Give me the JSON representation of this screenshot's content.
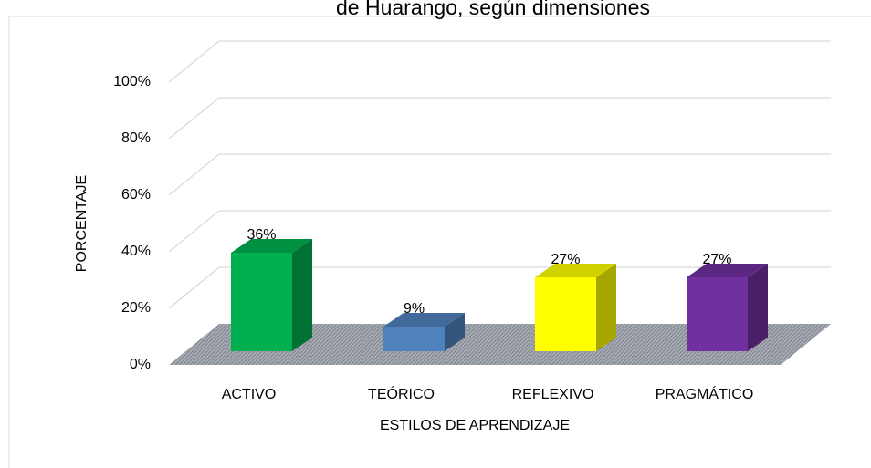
{
  "chart_data": {
    "type": "bar3d",
    "title": "de Huarango, según dimensiones",
    "x_label": "ESTILOS DE APRENDIZAJE",
    "y_label": "PORCENTAJE",
    "categories": [
      "ACTIVO",
      "TEÓRICO",
      "REFLEXIVO",
      "PRAGMÁTICO"
    ],
    "values": [
      36,
      9,
      27,
      27
    ],
    "value_labels": [
      "36%",
      "9%",
      "27%",
      "27%"
    ],
    "colors": [
      "#00b050",
      "#4f81bd",
      "#ffff00",
      "#7030a0"
    ],
    "ylim": [
      0,
      100
    ],
    "yticks": [
      {
        "value": 0,
        "label": "0%"
      },
      {
        "value": 20,
        "label": "20%"
      },
      {
        "value": 40,
        "label": "40%"
      },
      {
        "value": 60,
        "label": "60%"
      },
      {
        "value": 80,
        "label": "80%"
      },
      {
        "value": 100,
        "label": "100%"
      }
    ],
    "grid": true
  }
}
